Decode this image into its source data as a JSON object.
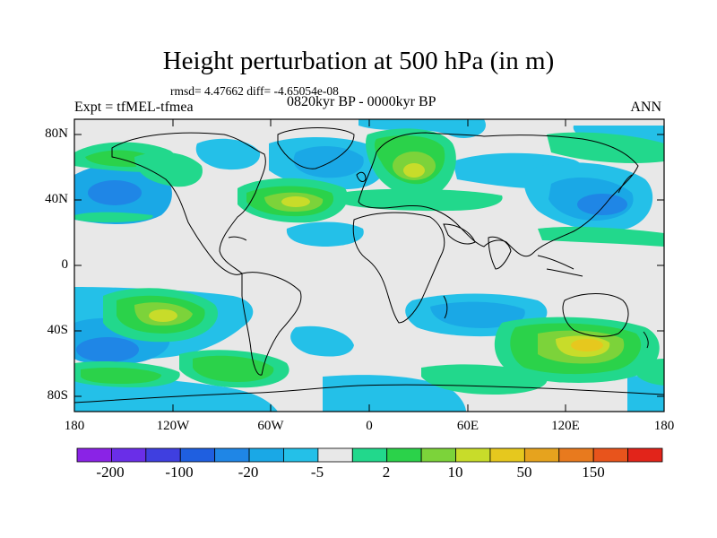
{
  "title": "Height perturbation at 500 hPa (in m)",
  "stats_text": "rmsd= 4.47662 diff= -4.65054e-08",
  "experiment_text": "Expt = tfMEL-tfmea",
  "period_text": "0820kyr BP - 0000kyr BP",
  "season": "ANN",
  "map": {
    "lat_labels": [
      "80N",
      "40N",
      "0",
      "40S",
      "80S"
    ],
    "lon_labels": [
      "180",
      "120W",
      "60W",
      "0",
      "60E",
      "120E",
      "180"
    ],
    "background_color": "#e8e8e8"
  },
  "colorbar": {
    "labels": [
      "-200",
      "-100",
      "-20",
      "-5",
      "2",
      "10",
      "50",
      "150"
    ],
    "colors": [
      "#8a23e6",
      "#6a2ee8",
      "#3f3fe0",
      "#1f5fe0",
      "#1f86e6",
      "#1aa8e6",
      "#24c0e8",
      "#e8e8e8",
      "#22d88c",
      "#2bd24a",
      "#7cd33a",
      "#c8dc2a",
      "#e6c81e",
      "#e6a31e",
      "#e87a1e",
      "#e8541c",
      "#e2241a"
    ]
  },
  "chart_data": {
    "type": "contour-map",
    "title": "Height perturbation at 500 hPa (in m)",
    "variable": "500 hPa geopotential height perturbation",
    "units": "m",
    "lon_range": [
      -180,
      180
    ],
    "lat_range": [
      -90,
      90
    ],
    "color_levels": [
      "-200",
      "-100",
      "-20",
      "-5",
      "2",
      "10",
      "50",
      "150"
    ],
    "anomalies": [
      {
        "region": "North Atlantic 40N 30W",
        "lon": -30,
        "lat": 38,
        "sign": "positive",
        "level": "10-50"
      },
      {
        "region": "Scandinavia 60N 30E",
        "lon": 30,
        "lat": 60,
        "sign": "positive",
        "level": "10-50"
      },
      {
        "region": "North Pacific 40N 150W",
        "lon": -150,
        "lat": 40,
        "sign": "negative",
        "level": "-5 to -20"
      },
      {
        "region": "Greenland 70N 40W",
        "lon": -40,
        "lat": 70,
        "sign": "negative",
        "level": "-5"
      },
      {
        "region": "NW Pacific 40N 140E",
        "lon": 140,
        "lat": 38,
        "sign": "negative",
        "level": "-5 to -20"
      },
      {
        "region": "South Pacific 30S 140W",
        "lon": -140,
        "lat": -30,
        "sign": "positive",
        "level": "10-50"
      },
      {
        "region": "Southern Ocean 50S 130E",
        "lon": 130,
        "lat": -50,
        "sign": "positive",
        "level": "10-50"
      },
      {
        "region": "Southeast Pacific 50S 160W",
        "lon": -160,
        "lat": -50,
        "sign": "negative",
        "level": "-5 to -20"
      }
    ]
  }
}
